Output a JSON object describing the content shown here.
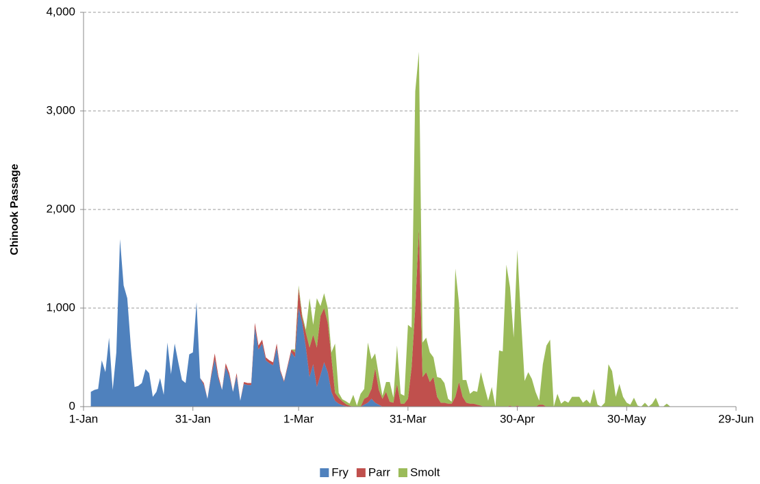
{
  "chart_data": {
    "type": "stacked-area",
    "y_axis_label": "Chinook Passage",
    "xlim": [
      0,
      179
    ],
    "xticks": [
      {
        "value": 0,
        "label": "1-Jan"
      },
      {
        "value": 30,
        "label": "31-Jan"
      },
      {
        "value": 59,
        "label": "1-Mar"
      },
      {
        "value": 89,
        "label": "31-Mar"
      },
      {
        "value": 119,
        "label": "30-Apr"
      },
      {
        "value": 149,
        "label": "30-May"
      },
      {
        "value": 179,
        "label": "29-Jun"
      }
    ],
    "ylim": [
      0,
      4000
    ],
    "yticks": [
      0,
      {
        "value": 1000,
        "label": "1,000"
      },
      {
        "value": 2000,
        "label": "2,000"
      },
      {
        "value": 3000,
        "label": "3,000"
      },
      {
        "value": 4000,
        "label": "4,000"
      }
    ],
    "grid": true,
    "legend": "bottom",
    "x": [
      2,
      3,
      4,
      5,
      6,
      7,
      8,
      9,
      10,
      11,
      12,
      13,
      14,
      15,
      16,
      17,
      18,
      19,
      20,
      21,
      22,
      23,
      24,
      25,
      26,
      27,
      28,
      29,
      30,
      31,
      32,
      33,
      34,
      35,
      36,
      37,
      38,
      39,
      40,
      41,
      42,
      43,
      44,
      45,
      46,
      47,
      48,
      49,
      50,
      51,
      52,
      53,
      54,
      55,
      56,
      57,
      58,
      59,
      60,
      61,
      62,
      63,
      64,
      65,
      66,
      67,
      68,
      69,
      70,
      71,
      72,
      73,
      74,
      75,
      76,
      77,
      78,
      79,
      80,
      81,
      82,
      83,
      84,
      85,
      86,
      87,
      88,
      89,
      90,
      91,
      92,
      93,
      94,
      95,
      96,
      97,
      98,
      99,
      100,
      101,
      102,
      103,
      104,
      105,
      106,
      107,
      108,
      109,
      110,
      111,
      112,
      113,
      114,
      115,
      116,
      117,
      118,
      119,
      120,
      121,
      122,
      123,
      124,
      125,
      126,
      127,
      128,
      129,
      130,
      131,
      132,
      133,
      134,
      135,
      136,
      137,
      138,
      139,
      140,
      141,
      142,
      143,
      144,
      145,
      146,
      147,
      148,
      149,
      150,
      151,
      152,
      153,
      154,
      155,
      156,
      157,
      158,
      159,
      160,
      161,
      162
    ],
    "series": [
      {
        "name": "Fry",
        "color": "#4f81bd",
        "values": [
          150,
          170,
          180,
          470,
          350,
          700,
          170,
          550,
          1700,
          1230,
          1100,
          600,
          200,
          210,
          240,
          380,
          340,
          100,
          150,
          290,
          120,
          650,
          330,
          640,
          450,
          270,
          240,
          530,
          550,
          1060,
          290,
          220,
          80,
          300,
          480,
          280,
          170,
          400,
          310,
          150,
          310,
          60,
          230,
          220,
          220,
          800,
          580,
          640,
          470,
          440,
          420,
          600,
          350,
          250,
          400,
          550,
          500,
          1000,
          850,
          600,
          300,
          430,
          200,
          320,
          450,
          350,
          150,
          60,
          30,
          15,
          5,
          0,
          0,
          0,
          0,
          20,
          40,
          80,
          40,
          20,
          0,
          0,
          0,
          0,
          0,
          0,
          0,
          0,
          0,
          0,
          0,
          0,
          0,
          0,
          0,
          0,
          0,
          0,
          0,
          0,
          0,
          0,
          0,
          0,
          0,
          0,
          0,
          0,
          0,
          0,
          0,
          0,
          0,
          0,
          0,
          0,
          0,
          0,
          0,
          0,
          0,
          0,
          0,
          0,
          0,
          0,
          0,
          0,
          0,
          0,
          0,
          0,
          0,
          0,
          0,
          0,
          0,
          0,
          0,
          0,
          0,
          0,
          0,
          0,
          0,
          0,
          0,
          0,
          0,
          0,
          0,
          0,
          0,
          0,
          0,
          0,
          0,
          0,
          0,
          0,
          0
        ]
      },
      {
        "name": "Parr",
        "color": "#c0504d",
        "values": [
          0,
          0,
          0,
          0,
          0,
          0,
          0,
          0,
          0,
          0,
          0,
          0,
          0,
          0,
          0,
          0,
          0,
          0,
          0,
          0,
          0,
          0,
          0,
          0,
          0,
          0,
          0,
          0,
          0,
          0,
          0,
          20,
          0,
          20,
          60,
          30,
          0,
          40,
          30,
          0,
          30,
          0,
          20,
          20,
          20,
          50,
          40,
          40,
          30,
          30,
          30,
          40,
          20,
          10,
          20,
          30,
          50,
          200,
          50,
          150,
          300,
          300,
          400,
          600,
          550,
          500,
          350,
          80,
          60,
          40,
          20,
          10,
          0,
          0,
          0,
          60,
          60,
          100,
          350,
          150,
          80,
          150,
          50,
          40,
          230,
          30,
          30,
          80,
          400,
          1000,
          1800,
          300,
          350,
          250,
          300,
          100,
          40,
          40,
          30,
          30,
          100,
          250,
          100,
          40,
          30,
          30,
          20,
          10,
          0,
          0,
          0,
          0,
          0,
          0,
          0,
          10,
          0,
          10,
          0,
          0,
          0,
          0,
          0,
          20,
          20,
          0,
          0,
          0,
          0,
          0,
          0,
          0,
          0,
          0,
          0,
          0,
          0,
          0,
          0,
          0,
          0,
          0,
          0,
          0,
          0,
          0,
          0,
          0,
          0,
          0,
          0,
          0,
          0,
          0,
          0,
          0,
          0,
          0,
          0,
          0,
          0
        ]
      },
      {
        "name": "Smolt",
        "color": "#9bbb59",
        "values": [
          0,
          0,
          0,
          0,
          0,
          0,
          0,
          0,
          0,
          0,
          0,
          0,
          0,
          0,
          0,
          0,
          0,
          0,
          0,
          0,
          0,
          0,
          0,
          0,
          0,
          0,
          0,
          0,
          0,
          0,
          0,
          0,
          0,
          0,
          0,
          0,
          0,
          0,
          0,
          0,
          0,
          0,
          0,
          0,
          0,
          0,
          0,
          0,
          0,
          0,
          0,
          0,
          0,
          0,
          0,
          0,
          30,
          30,
          30,
          30,
          500,
          100,
          500,
          100,
          150,
          150,
          50,
          500,
          50,
          20,
          30,
          20,
          120,
          10,
          130,
          100,
          550,
          300,
          150,
          150,
          30,
          100,
          200,
          50,
          390,
          100,
          80,
          750,
          400,
          2200,
          1800,
          350,
          350,
          300,
          200,
          200,
          250,
          200,
          50,
          20,
          1300,
          800,
          170,
          230,
          100,
          130,
          130,
          340,
          200,
          60,
          200,
          0,
          570,
          560,
          1440,
          1200,
          700,
          1580,
          900,
          260,
          350,
          280,
          150,
          40,
          410,
          620,
          680,
          0,
          130,
          30,
          60,
          40,
          100,
          100,
          100,
          40,
          70,
          30,
          180,
          20,
          0,
          40,
          430,
          360,
          100,
          230,
          100,
          40,
          20,
          90,
          10,
          0,
          40,
          0,
          30,
          90,
          0,
          0,
          30,
          0,
          0
        ]
      }
    ]
  }
}
